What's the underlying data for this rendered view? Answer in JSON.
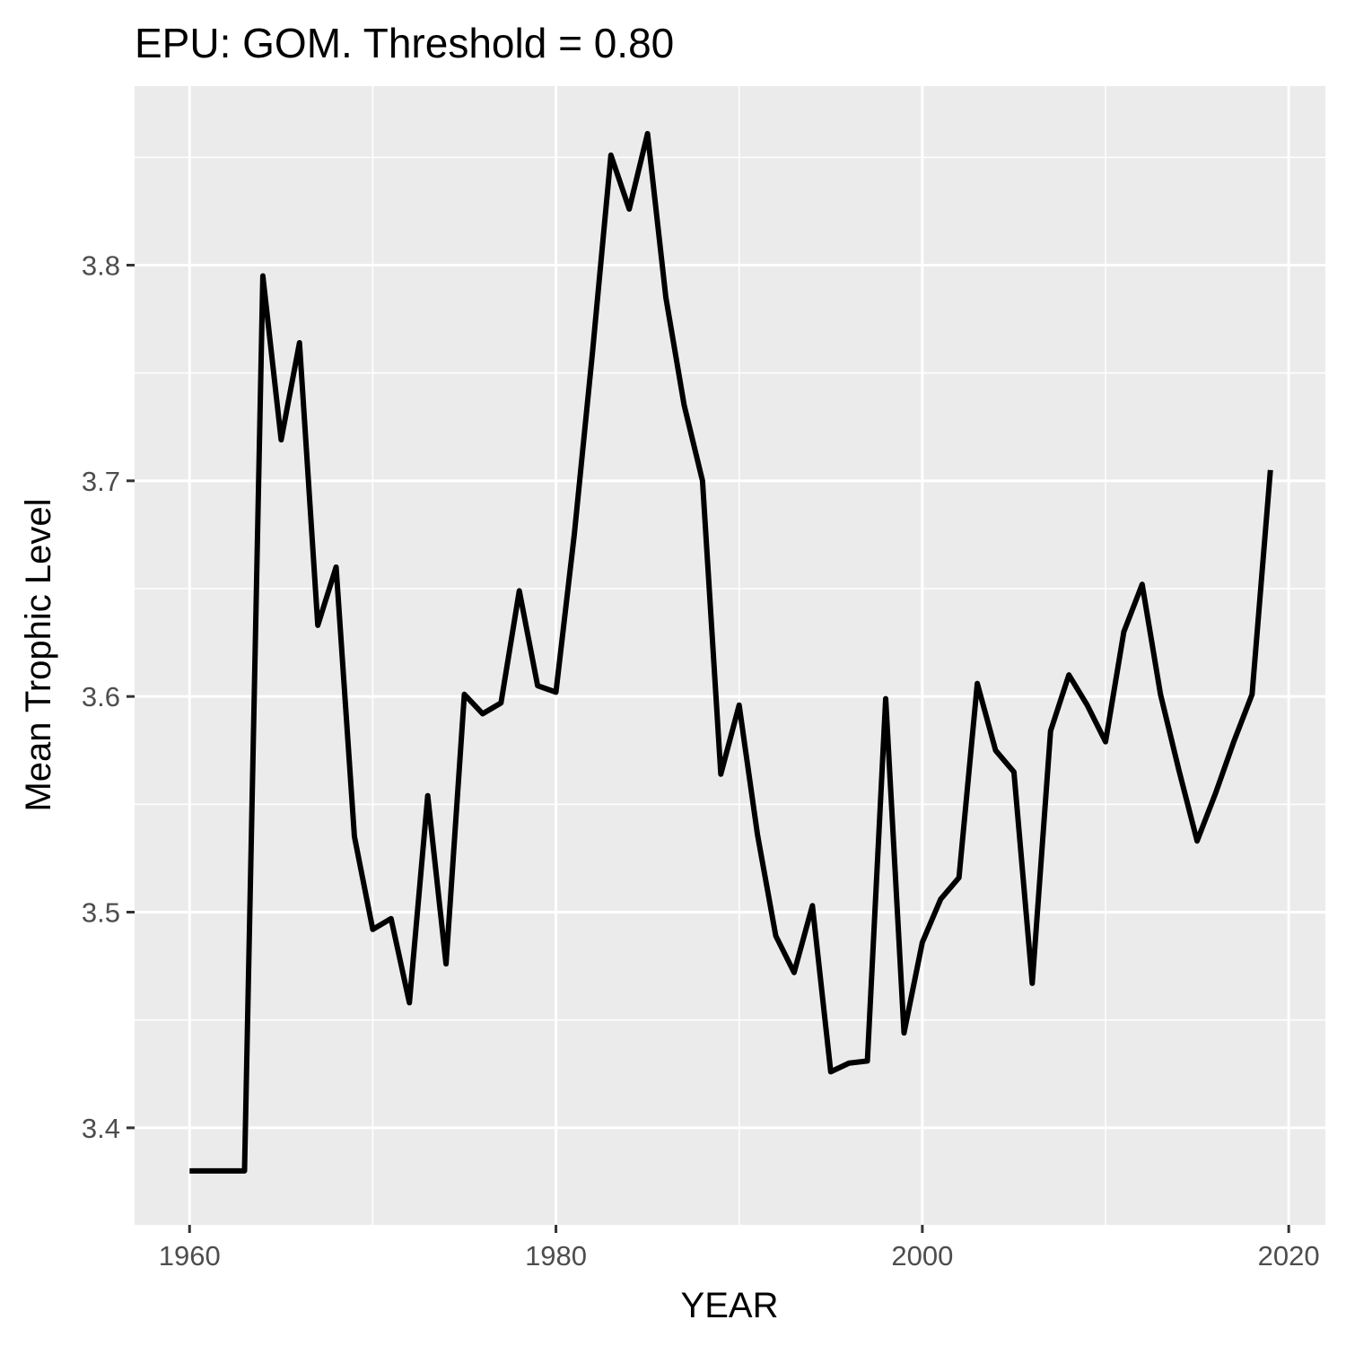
{
  "chart_data": {
    "type": "line",
    "title": "EPU: GOM. Threshold = 0.80",
    "xlabel": "YEAR",
    "ylabel": "Mean Trophic Level",
    "xlim": [
      1957,
      2022
    ],
    "ylim": [
      3.355,
      3.883
    ],
    "x_major_ticks": [
      1960,
      1980,
      2000,
      2020
    ],
    "x_tick_labels": [
      "1960",
      "1980",
      "2000",
      "2020"
    ],
    "y_major_ticks": [
      3.4,
      3.5,
      3.6,
      3.7,
      3.8
    ],
    "y_tick_labels": [
      "3.4",
      "3.5",
      "3.6",
      "3.7",
      "3.8"
    ],
    "grid": true,
    "panel_background": "#ebebeb",
    "grid_color": "#ffffff",
    "line_color": "#000000",
    "series": [
      {
        "x": [
          1960,
          1961,
          1962,
          1963,
          1964,
          1965,
          1966,
          1967,
          1968,
          1969,
          1970,
          1971,
          1972,
          1973,
          1974,
          1975,
          1976,
          1977,
          1978,
          1979,
          1980,
          1981,
          1982,
          1983,
          1984,
          1985,
          1986,
          1987,
          1988,
          1989,
          1990,
          1991,
          1992,
          1993,
          1994,
          1995,
          1996,
          1997,
          1998,
          1999,
          2000,
          2001,
          2002,
          2003,
          2004,
          2005,
          2006,
          2007,
          2008,
          2009,
          2010,
          2011,
          2012,
          2013,
          2014,
          2015,
          2016,
          2017,
          2018,
          2019
        ],
        "values": [
          3.38,
          3.38,
          3.38,
          3.38,
          3.795,
          3.719,
          3.764,
          3.633,
          3.66,
          3.535,
          3.492,
          3.497,
          3.458,
          3.554,
          3.476,
          3.601,
          3.592,
          3.597,
          3.649,
          3.605,
          3.602,
          3.675,
          3.76,
          3.851,
          3.826,
          3.861,
          3.785,
          3.735,
          3.7,
          3.564,
          3.596,
          3.536,
          3.489,
          3.472,
          3.503,
          3.426,
          3.43,
          3.431,
          3.599,
          3.444,
          3.486,
          3.506,
          3.516,
          3.606,
          3.575,
          3.565,
          3.467,
          3.584,
          3.61,
          3.596,
          3.579,
          3.63,
          3.652,
          3.601,
          3.566,
          3.533,
          3.555,
          3.579,
          3.601,
          3.705
        ]
      }
    ]
  }
}
